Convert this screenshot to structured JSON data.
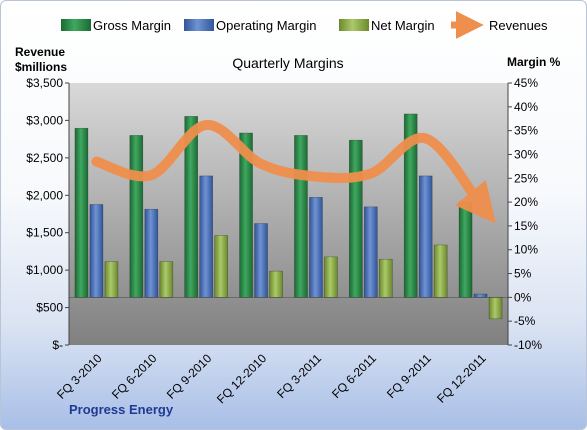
{
  "chart_data": {
    "type": "bar",
    "title": "Quarterly Margins",
    "ylabel_left": "Revenue\n$millions",
    "ylabel_right": "Margin %",
    "footer_label": "Progress Energy",
    "categories": [
      "FQ 3-2010",
      "FQ 6-2010",
      "FQ 9-2010",
      "FQ 12-2010",
      "FQ 3-2011",
      "FQ 6-2011",
      "FQ 9-2011",
      "FQ 12-2011"
    ],
    "series": [
      {
        "name": "Gross Margin",
        "axis": "right",
        "type": "bar",
        "color": "#2e8b4a",
        "values": [
          35.5,
          34,
          38,
          34.5,
          34,
          33,
          38.5,
          20
        ]
      },
      {
        "name": "Operating Margin",
        "axis": "right",
        "type": "bar",
        "color": "#4f74b8",
        "values": [
          19.5,
          18.5,
          25.5,
          15.5,
          21,
          19,
          25.5,
          0.7
        ]
      },
      {
        "name": "Net Margin",
        "axis": "right",
        "type": "bar",
        "color": "#8fb04a",
        "values": [
          7.5,
          7.5,
          13,
          5.5,
          8.5,
          8,
          11,
          -4.5
        ]
      },
      {
        "name": "Revenues",
        "axis": "left",
        "type": "line",
        "color": "#f0a05a",
        "values": [
          2450,
          2270,
          2940,
          2420,
          2250,
          2290,
          2760,
          1870
        ]
      }
    ],
    "y_left": {
      "min": 0,
      "max": 3500,
      "ticks": [
        "$-",
        "$500",
        "$1,000",
        "$1,500",
        "$2,000",
        "$2,500",
        "$3,000",
        "$3,500"
      ]
    },
    "y_right": {
      "min": -10,
      "max": 45,
      "ticks": [
        "-10%",
        "-5%",
        "0%",
        "5%",
        "10%",
        "15%",
        "20%",
        "25%",
        "30%",
        "35%",
        "40%",
        "45%"
      ]
    },
    "legend_position": "top",
    "grid": false
  }
}
